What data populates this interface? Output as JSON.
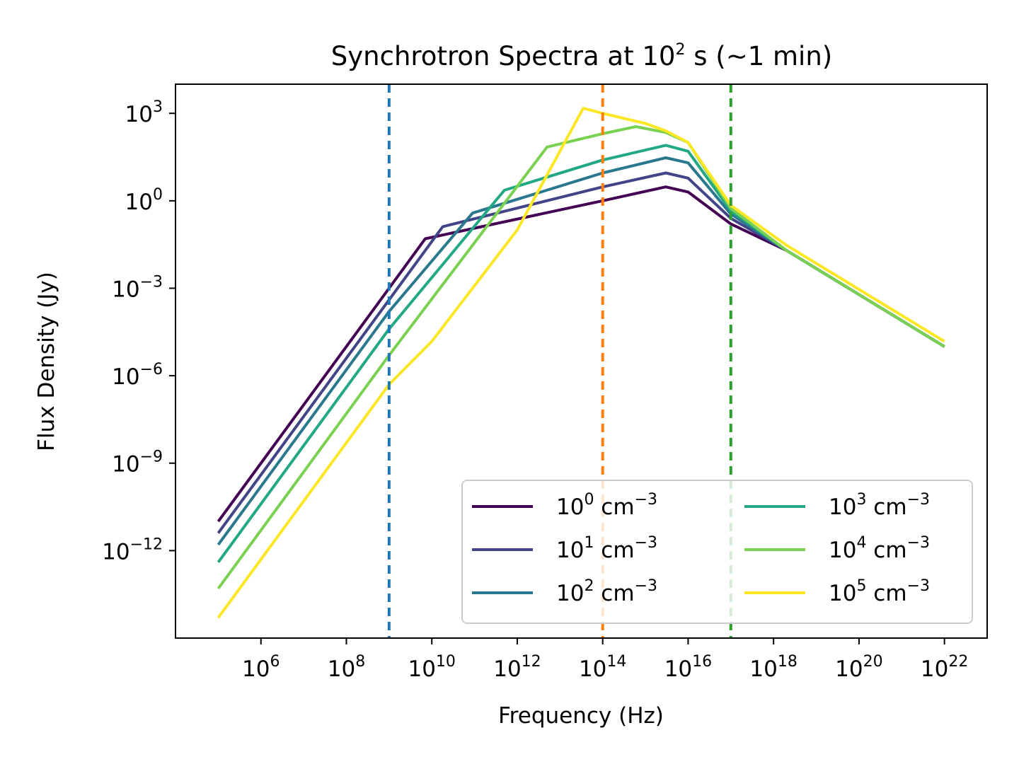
{
  "chart_data": {
    "type": "line",
    "title": {
      "main": "Synchrotron Spectra at 10",
      "exp": "2",
      "tail": " s (~1 min)"
    },
    "xlabel": "Frequency (Hz)",
    "ylabel": "Flux Density (Jy)",
    "x_scale": "log",
    "y_scale": "log",
    "xlim": [
      10000.0,
      1e+23
    ],
    "ylim": [
      1e-15,
      10000.0
    ],
    "x_ticks": [
      {
        "base": "10",
        "exp": "6",
        "value": 1000000.0
      },
      {
        "base": "10",
        "exp": "8",
        "value": 100000000.0
      },
      {
        "base": "10",
        "exp": "10",
        "value": 10000000000.0
      },
      {
        "base": "10",
        "exp": "12",
        "value": 1000000000000.0
      },
      {
        "base": "10",
        "exp": "14",
        "value": 100000000000000.0
      },
      {
        "base": "10",
        "exp": "16",
        "value": 1e+16
      },
      {
        "base": "10",
        "exp": "18",
        "value": 1e+18
      },
      {
        "base": "10",
        "exp": "20",
        "value": 1e+20
      },
      {
        "base": "10",
        "exp": "22",
        "value": 1e+22
      }
    ],
    "y_ticks": [
      {
        "base": "10",
        "exp": "3",
        "value": 1000.0
      },
      {
        "base": "10",
        "exp": "0",
        "value": 1
      },
      {
        "base": "10",
        "exp": "−3",
        "value": 0.001
      },
      {
        "base": "10",
        "exp": "−6",
        "value": 1e-06
      },
      {
        "base": "10",
        "exp": "−9",
        "value": 1e-09
      },
      {
        "base": "10",
        "exp": "−12",
        "value": 1e-12
      }
    ],
    "grid": false,
    "legend": {
      "placement": "lower-right",
      "columns": 2
    },
    "vlines": [
      {
        "x": 1000000000.0,
        "color": "#1f77b4",
        "style": "dashed"
      },
      {
        "x": 100000000000000.0,
        "color": "#ff7f0e",
        "style": "dashed"
      },
      {
        "x": 1e+17,
        "color": "#2ca02c",
        "style": "dashed"
      }
    ],
    "series": [
      {
        "name": {
          "base": "10",
          "exp": "0",
          "unit": " cm",
          "unit_exp": "−3"
        },
        "color": "#440154",
        "points": [
          [
            100000.0,
            1e-11
          ],
          [
            1000000000.0,
            0.001
          ],
          [
            7000000000.0,
            0.05
          ],
          [
            100000000000000.0,
            1.0
          ],
          [
            3000000000000000.0,
            3.0
          ],
          [
            1e+16,
            2.0
          ],
          [
            1e+17,
            0.16
          ],
          [
            2e+18,
            0.02
          ],
          [
            1e+22,
            1e-05
          ]
        ]
      },
      {
        "name": {
          "base": "10",
          "exp": "1",
          "unit": " cm",
          "unit_exp": "−3"
        },
        "color": "#414487",
        "points": [
          [
            100000.0,
            4e-12
          ],
          [
            1000000000.0,
            0.0004
          ],
          [
            18000000000.0,
            0.13
          ],
          [
            100000000000000.0,
            3.0
          ],
          [
            3000000000000000.0,
            9.0
          ],
          [
            1e+16,
            6.0
          ],
          [
            1e+17,
            0.25
          ],
          [
            2e+18,
            0.02
          ],
          [
            1e+22,
            1e-05
          ]
        ]
      },
      {
        "name": {
          "base": "10",
          "exp": "2",
          "unit": " cm",
          "unit_exp": "−3"
        },
        "color": "#2a788e",
        "points": [
          [
            100000.0,
            1.6e-12
          ],
          [
            1000000000.0,
            0.00016
          ],
          [
            90000000000.0,
            0.38
          ],
          [
            100000000000000.0,
            9.0
          ],
          [
            3000000000000000.0,
            30.0
          ],
          [
            1e+16,
            20.0
          ],
          [
            1e+17,
            0.35
          ],
          [
            2e+18,
            0.02
          ],
          [
            1e+22,
            1e-05
          ]
        ]
      },
      {
        "name": {
          "base": "10",
          "exp": "3",
          "unit": " cm",
          "unit_exp": "−3"
        },
        "color": "#22a884",
        "points": [
          [
            100000.0,
            4e-13
          ],
          [
            1000000000.0,
            4e-05
          ],
          [
            500000000000.0,
            2.3
          ],
          [
            100000000000000.0,
            25.0
          ],
          [
            3000000000000000.0,
            80.0
          ],
          [
            1e+16,
            50.0
          ],
          [
            1e+17,
            0.45
          ],
          [
            2e+18,
            0.02
          ],
          [
            1e+22,
            1e-05
          ]
        ]
      },
      {
        "name": {
          "base": "10",
          "exp": "4",
          "unit": " cm",
          "unit_exp": "−3"
        },
        "color": "#7ad151",
        "points": [
          [
            100000.0,
            5e-14
          ],
          [
            1000000000.0,
            5e-06
          ],
          [
            5000000000000.0,
            70.0
          ],
          [
            100000000000000.0,
            200.0
          ],
          [
            600000000000000.0,
            350.0
          ],
          [
            3000000000000000.0,
            220.0
          ],
          [
            1e+16,
            100.0
          ],
          [
            1e+17,
            0.55
          ],
          [
            2e+18,
            0.02
          ],
          [
            1e+22,
            1e-05
          ]
        ]
      },
      {
        "name": {
          "base": "10",
          "exp": "5",
          "unit": " cm",
          "unit_exp": "−3"
        },
        "color": "#fde725",
        "points": [
          [
            100000.0,
            5e-15
          ],
          [
            1000000000.0,
            5e-07
          ],
          [
            10000000000.0,
            1.5e-05
          ],
          [
            1000000000000.0,
            0.1
          ],
          [
            35000000000000.0,
            1500.0
          ],
          [
            100000000000000.0,
            1000.0
          ],
          [
            1000000000000000.0,
            450.0
          ],
          [
            3000000000000000.0,
            250.0
          ],
          [
            1e+16,
            100.0
          ],
          [
            1e+17,
            0.7
          ],
          [
            2e+18,
            0.03
          ],
          [
            1e+22,
            1.5e-05
          ]
        ]
      }
    ]
  }
}
